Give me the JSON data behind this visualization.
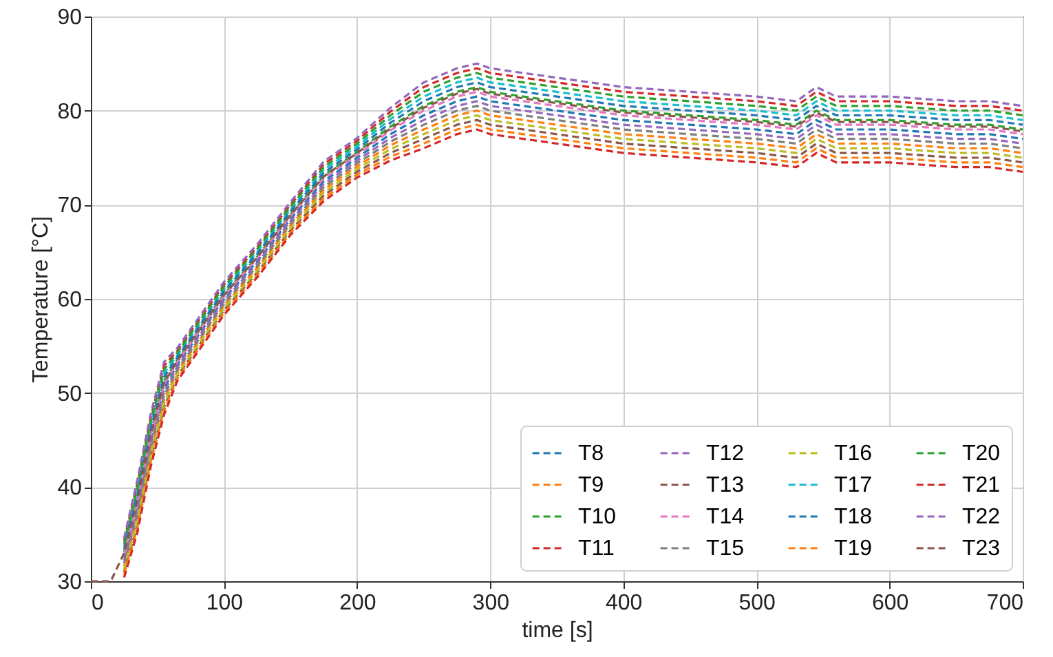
{
  "chart_data": {
    "type": "line",
    "xlabel": "time [s]",
    "ylabel": "Temperature [°C]",
    "x": [
      0,
      15,
      25,
      35,
      45,
      55,
      65,
      80,
      100,
      125,
      150,
      175,
      200,
      225,
      250,
      275,
      290,
      300,
      350,
      400,
      450,
      500,
      530,
      545,
      560,
      600,
      650,
      675,
      700
    ],
    "xlim": [
      0,
      700
    ],
    "xticks": [
      0,
      100,
      200,
      300,
      400,
      500,
      600,
      700
    ],
    "ylim": [
      30,
      90
    ],
    "yticks": [
      30,
      40,
      50,
      60,
      70,
      80,
      90
    ],
    "grid": true,
    "legend": "bottom right",
    "line_style": "dashed",
    "marker": "none",
    "series": [
      {
        "name": "T8",
        "color": "#1f77b4",
        "values": [
          null,
          null,
          32.5,
          38,
          45,
          50.5,
          53,
          56,
          60,
          64,
          68.5,
          72.5,
          75,
          77.5,
          79.5,
          81,
          81.5,
          81,
          80,
          79,
          78.5,
          78,
          77.5,
          79,
          78,
          78,
          77.5,
          77.5,
          77
        ]
      },
      {
        "name": "T9",
        "color": "#ff7f0e",
        "values": [
          null,
          null,
          31.6,
          36.8,
          43.8,
          49.3,
          52.3,
          55.3,
          59.3,
          63.3,
          67.8,
          71.6,
          74.1,
          76.3,
          78,
          79.5,
          80,
          79.5,
          78.5,
          77.5,
          77,
          76.5,
          76,
          77.5,
          76.5,
          76.5,
          76,
          76,
          75.5
        ]
      },
      {
        "name": "T10",
        "color": "#2ca02c",
        "values": [
          null,
          null,
          33.1,
          38.8,
          45.8,
          51.3,
          53.5,
          56.5,
          60.5,
          64.5,
          69,
          73.1,
          75.6,
          78.3,
          80.5,
          82,
          82.5,
          82,
          81,
          80,
          79.5,
          79,
          78.5,
          80,
          79,
          79,
          78.5,
          78.5,
          78
        ]
      },
      {
        "name": "T11",
        "color": "#d62728",
        "values": [
          null,
          null,
          34.3,
          40.4,
          47.4,
          52.9,
          54.5,
          57.5,
          61.5,
          65.5,
          70,
          74.3,
          76.8,
          79.9,
          82.5,
          84,
          84.5,
          84,
          83,
          82,
          81.5,
          81,
          80.5,
          82,
          81,
          81,
          80.5,
          80.5,
          80
        ]
      },
      {
        "name": "T12",
        "color": "#9467bd",
        "values": [
          null,
          null,
          32.2,
          37.6,
          44.6,
          50.1,
          52.8,
          55.8,
          59.8,
          63.8,
          68.3,
          72.2,
          74.7,
          77.1,
          79,
          80.5,
          81,
          80.5,
          79.5,
          78.5,
          78,
          77.5,
          77,
          78.5,
          77.5,
          77.5,
          77,
          77,
          76.5
        ]
      },
      {
        "name": "T13",
        "color": "#8c564b",
        "values": [
          null,
          null,
          31,
          36,
          43,
          48.5,
          51.8,
          54.8,
          58.8,
          62.8,
          67.3,
          71,
          73.5,
          75.5,
          77,
          78.5,
          79,
          78.5,
          77.5,
          76.5,
          76,
          75.5,
          75,
          76.5,
          75.5,
          75.5,
          75,
          75,
          74.5
        ]
      },
      {
        "name": "T14",
        "color": "#e377c2",
        "values": [
          null,
          null,
          32.8,
          38.4,
          45.4,
          50.9,
          53.3,
          56.3,
          60.3,
          64.3,
          68.8,
          72.8,
          75.3,
          77.9,
          80,
          81.5,
          82,
          81.5,
          80.5,
          79.5,
          79,
          78.5,
          78,
          79.5,
          78.5,
          78.5,
          78,
          78,
          77.5
        ]
      },
      {
        "name": "T15",
        "color": "#7f7f7f",
        "values": [
          null,
          null,
          31.9,
          37.2,
          44.2,
          49.7,
          52.5,
          55.5,
          59.5,
          63.5,
          68,
          71.9,
          74.4,
          76.7,
          78.5,
          80,
          80.5,
          80,
          79,
          78,
          77.5,
          77,
          76.5,
          78,
          77,
          77,
          76.5,
          76.5,
          76
        ]
      },
      {
        "name": "T16",
        "color": "#bcbd22",
        "values": [
          null,
          null,
          31.3,
          36.4,
          43.4,
          48.9,
          52,
          55,
          59,
          63,
          67.5,
          71.3,
          73.8,
          75.9,
          77.5,
          79,
          79.5,
          79,
          78,
          77,
          76.5,
          76,
          75.5,
          77,
          76,
          76,
          75.5,
          75.5,
          75
        ]
      },
      {
        "name": "T17",
        "color": "#17becf",
        "values": [
          null,
          null,
          33.7,
          39.6,
          46.6,
          52.1,
          54,
          57,
          61,
          65,
          69.5,
          73.7,
          76.2,
          79.1,
          81.5,
          83,
          83.5,
          83,
          82,
          81,
          80.5,
          80,
          79.5,
          81,
          80,
          80,
          79.5,
          79.5,
          79
        ]
      },
      {
        "name": "T18",
        "color": "#1f77b4",
        "values": [
          null,
          null,
          33.4,
          39.2,
          46.2,
          51.7,
          53.8,
          56.8,
          60.8,
          64.8,
          69.3,
          73.4,
          75.9,
          78.7,
          81,
          82.5,
          83,
          82.5,
          81.5,
          80.5,
          80,
          79.5,
          79,
          80.5,
          79.5,
          79.5,
          79,
          79,
          78.5
        ]
      },
      {
        "name": "T19",
        "color": "#ff7f0e",
        "values": [
          null,
          null,
          30.7,
          35.6,
          42.6,
          48.1,
          51.5,
          54.5,
          58.5,
          62.5,
          67,
          70.7,
          73.2,
          75.1,
          76.5,
          78,
          78.5,
          78,
          77,
          76,
          75.5,
          75,
          74.5,
          76,
          75,
          75,
          74.5,
          74.5,
          74
        ]
      },
      {
        "name": "T20",
        "color": "#2ca02c",
        "values": [
          null,
          null,
          34,
          40,
          47,
          52.5,
          54.3,
          57.3,
          61.3,
          65.3,
          69.8,
          74,
          76.5,
          79.5,
          82,
          83.5,
          84,
          83.5,
          82.5,
          81.5,
          81,
          80.5,
          80,
          81.5,
          80.5,
          80.5,
          80,
          80,
          79.5
        ]
      },
      {
        "name": "T21",
        "color": "#d62728",
        "values": [
          null,
          null,
          30.4,
          35.2,
          42.2,
          47.7,
          51.3,
          54.3,
          58.3,
          62.3,
          66.8,
          70.4,
          72.9,
          74.7,
          76,
          77.5,
          78,
          77.5,
          76.5,
          75.5,
          75,
          74.5,
          74,
          75.5,
          74.5,
          74.5,
          74,
          74,
          73.5
        ]
      },
      {
        "name": "T22",
        "color": "#9467bd",
        "values": [
          null,
          null,
          34.6,
          40.8,
          47.8,
          53.3,
          54.8,
          57.8,
          61.8,
          65.8,
          70.3,
          74.6,
          77.1,
          80.3,
          83,
          84.5,
          85,
          84.5,
          83.5,
          82.5,
          82,
          81.5,
          81,
          82.5,
          81.5,
          81.5,
          81,
          81,
          80.5
        ]
      },
      {
        "name": "T23",
        "color": "#8c564b",
        "values": [
          30,
          30,
          33,
          38.6,
          45.6,
          51.1,
          53.4,
          56.4,
          60.4,
          64.4,
          68.9,
          73,
          75.5,
          78.1,
          80.3,
          81.8,
          82.3,
          81.8,
          80.8,
          79.8,
          79.3,
          78.8,
          78.3,
          79.8,
          78.8,
          78.8,
          78.3,
          78.3,
          77.8
        ]
      }
    ]
  }
}
